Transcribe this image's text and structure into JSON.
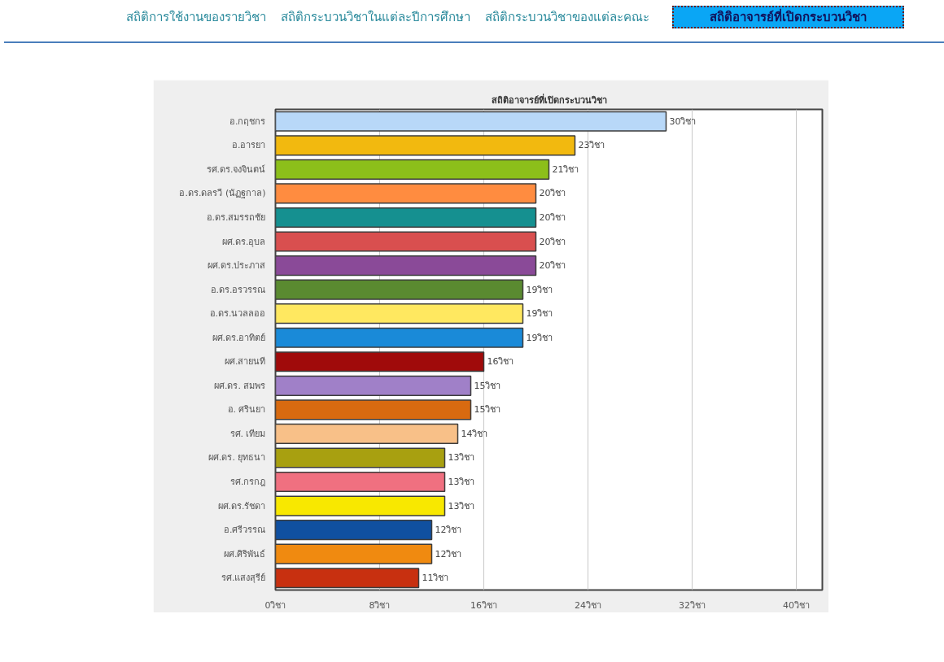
{
  "chart_data": {
    "type": "bar",
    "orientation": "horizontal",
    "title": "สถิติอาจารย์ที่เปิดกระบวนวิชา",
    "annotations": [
      "สถิติการใช้งานของรายวิชา",
      "สถิติกระบวนวิชาในแต่ละปีการศึกษา",
      "สถิติกระบวนวิชาของแต่ละคณะ",
      "สถิติอาจารย์ที่เปิดกระบวนวิชา"
    ],
    "categories": [
      "อ.กฤชกร",
      "อ.อารยา",
      "รศ.ดร.จงจินตน์",
      "อ.ดร.ดลรวี (นัฏฐกาล)",
      "อ.ดร.สมรรถชัย",
      "ผศ.ดร.อุบล",
      "ผศ.ดร.ประภาส",
      "อ.ดร.อรวรรณ",
      "อ.ดร.นวลลออ",
      "ผศ.ดร.อาทิตย์",
      "ผศ.สายนที",
      "ผศ.ดร. สมพร",
      "อ. ศรินยา",
      "รศ. เทียม",
      "ผศ.ดร. ยุทธนา",
      "รศ.กรกฎ",
      "ผศ.ดร.รัชดา",
      "อ.ศรีวรรณ",
      "ผศ.ศิริพันธ์",
      "รศ.แสงสุรีย์"
    ],
    "values": [
      30,
      23,
      21,
      20,
      20,
      20,
      20,
      19,
      19,
      19,
      16,
      15,
      15,
      14,
      13,
      13,
      13,
      12,
      12,
      11
    ],
    "colors": [
      "#b8d8f8",
      "#f2b90f",
      "#8cbf1a",
      "#ff8c40",
      "#159090",
      "#d94f4f",
      "#8a4a98",
      "#5a8a30",
      "#ffe860",
      "#1a8ad8",
      "#a00a0a",
      "#a080c8",
      "#d86a10",
      "#f8c088",
      "#a8a010",
      "#f07080",
      "#f8e800",
      "#1050a0",
      "#f08a10",
      "#c83010"
    ],
    "value_labels": [
      "30วิชา",
      "23วิชา",
      "21วิชา",
      "20วิชา",
      "20วิชา",
      "20วิชา",
      "20วิชา",
      "19วิชา",
      "19วิชา",
      "19วิชา",
      "16วิชา",
      "15วิชา",
      "15วิชา",
      "14วิชา",
      "13วิชา",
      "13วิชา",
      "13วิชา",
      "12วิชา",
      "12วิชา",
      "11วิชา"
    ],
    "xlim": [
      0,
      42
    ],
    "xticks": [
      {
        "value": 0,
        "label": "0วิชา"
      },
      {
        "value": 8,
        "label": "8วิชา"
      },
      {
        "value": 16,
        "label": "16วิชา"
      },
      {
        "value": 24,
        "label": "24วิชา"
      },
      {
        "value": 32,
        "label": "32วิชา"
      },
      {
        "value": 40,
        "label": "40วิชา"
      }
    ],
    "grid": "x"
  }
}
